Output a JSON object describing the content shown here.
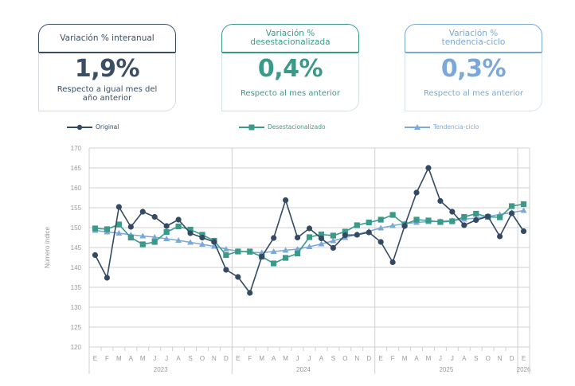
{
  "cards": [
    {
      "title": "Variación % interanual",
      "value": "1,9%",
      "subtitle": "Respecto a igual mes del año anterior"
    },
    {
      "title": "Variación % desestacionalizada",
      "value": "0,4%",
      "subtitle": "Respecto al mes anterior"
    },
    {
      "title": "Variación % tendencia-ciclo",
      "value": "0,3%",
      "subtitle": "Respecto al mes anterior"
    }
  ],
  "colors": {
    "original": "#344a63",
    "desestacionalizado": "#3a9a8a",
    "tendencia": "#7aa8d8",
    "grid": "#d0d0d0",
    "axis_text": "#999999"
  },
  "chart_data": {
    "type": "line",
    "title": "",
    "xlabel": "",
    "ylabel": "Número índice",
    "ylim": [
      120,
      170
    ],
    "yticks": [
      120,
      125,
      130,
      135,
      140,
      145,
      150,
      155,
      160,
      165,
      170
    ],
    "grid": true,
    "legend_position": "top",
    "x": [
      "E",
      "F",
      "M",
      "A",
      "M",
      "J",
      "J",
      "A",
      "S",
      "O",
      "N",
      "D",
      "E",
      "F",
      "M",
      "A",
      "M",
      "J",
      "J",
      "A",
      "S",
      "O",
      "N",
      "D",
      "E",
      "F",
      "M",
      "A",
      "M",
      "J",
      "J",
      "A",
      "S",
      "O",
      "N",
      "D",
      "E"
    ],
    "years": [
      {
        "label": "2023",
        "months": 12
      },
      {
        "label": "2024",
        "months": 12
      },
      {
        "label": "2025",
        "months": 12
      },
      {
        "label": "2026",
        "months": 1
      }
    ],
    "series": [
      {
        "name": "Original",
        "marker": "circle",
        "values": [
          143.1,
          137.4,
          155.2,
          150.2,
          154.0,
          152.7,
          150.4,
          152.0,
          148.6,
          147.5,
          146.4,
          139.4,
          137.6,
          133.6,
          142.7,
          147.4,
          156.9,
          147.5,
          149.8,
          147.3,
          144.9,
          148.1,
          148.2,
          148.8,
          146.4,
          141.3,
          150.4,
          158.8,
          165.0,
          156.7,
          154.0,
          150.6,
          151.9,
          152.8,
          147.8,
          153.6,
          149.1
        ]
      },
      {
        "name": "Desestacionalizado",
        "marker": "square",
        "values": [
          149.8,
          149.6,
          150.8,
          147.5,
          145.8,
          146.4,
          148.9,
          150.3,
          149.5,
          148.2,
          146.7,
          143.1,
          144.0,
          144.0,
          142.7,
          141.0,
          142.4,
          143.5,
          147.6,
          148.3,
          148.0,
          149.0,
          150.6,
          151.3,
          152.0,
          153.2,
          150.8,
          152.0,
          151.8,
          151.4,
          151.6,
          152.7,
          153.5,
          152.7,
          152.6,
          155.4,
          155.9
        ]
      },
      {
        "name": "Tendencia-ciclo",
        "marker": "triangle",
        "values": [
          149.3,
          148.9,
          148.6,
          148.2,
          147.9,
          147.6,
          147.2,
          146.8,
          146.3,
          145.8,
          145.3,
          144.6,
          144.1,
          143.8,
          143.7,
          144.0,
          144.3,
          144.6,
          145.2,
          145.9,
          146.7,
          147.5,
          148.3,
          149.1,
          149.9,
          150.5,
          151.0,
          151.3,
          151.5,
          151.6,
          151.8,
          152.1,
          152.4,
          152.8,
          153.3,
          153.8,
          154.3
        ]
      }
    ]
  }
}
